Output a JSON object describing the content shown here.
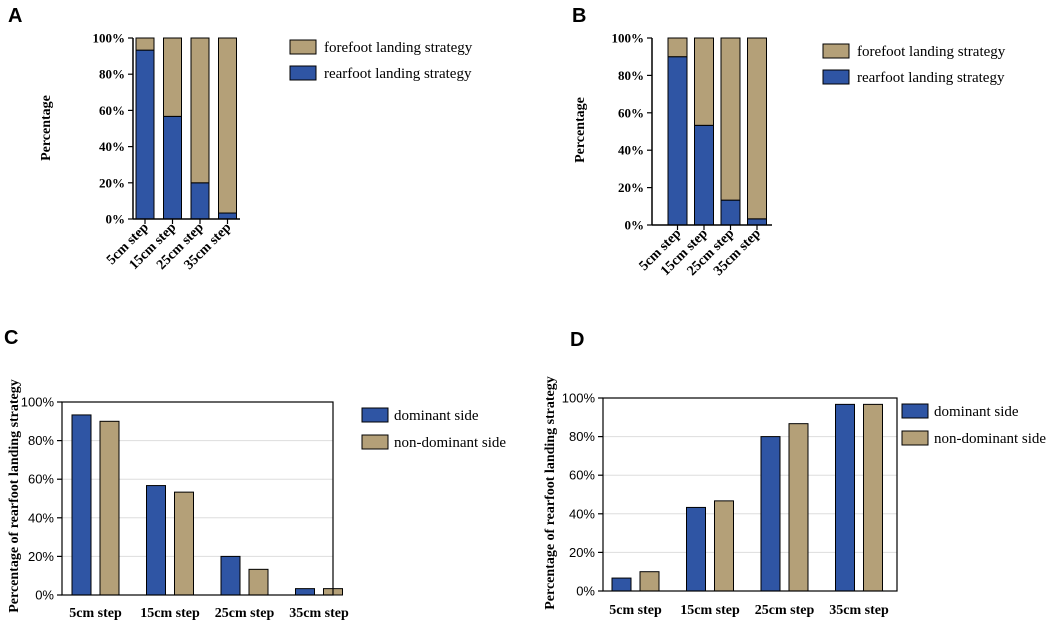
{
  "colors": {
    "rearfoot": "#2f55a4",
    "forefoot": "#b4a078",
    "dominant": "#2f55a4",
    "nondominant": "#b4a078",
    "axis": "#000000",
    "grid": "#dddddd"
  },
  "chart_data": [
    {
      "panel": "A",
      "type": "bar",
      "stacked": true,
      "categories": [
        "5cm step",
        "15cm step",
        "25cm step",
        "35cm step"
      ],
      "ylabel": "Percentage",
      "ylim": [
        0,
        100
      ],
      "yticks": [
        "0%",
        "20%",
        "40%",
        "60%",
        "80%",
        "100%"
      ],
      "series": [
        {
          "name": "rearfoot landing strategy",
          "values": [
            93.3,
            56.7,
            20,
            3.3
          ]
        },
        {
          "name": "forefoot landing strategy",
          "values": [
            6.7,
            43.3,
            80,
            96.7
          ]
        }
      ],
      "legend": [
        "forefoot landing strategy",
        "rearfoot landing strategy"
      ]
    },
    {
      "panel": "B",
      "type": "bar",
      "stacked": true,
      "categories": [
        "5cm step",
        "15cm step",
        "25cm step",
        "35cm step"
      ],
      "ylabel": "Percentage",
      "ylim": [
        0,
        100
      ],
      "yticks": [
        "0%",
        "20%",
        "40%",
        "60%",
        "80%",
        "100%"
      ],
      "series": [
        {
          "name": "rearfoot landing strategy",
          "values": [
            90,
            53.3,
            13.3,
            3.3
          ]
        },
        {
          "name": "forefoot landing strategy",
          "values": [
            10,
            46.7,
            86.7,
            96.7
          ]
        }
      ],
      "legend": [
        "forefoot landing strategy",
        "rearfoot landing strategy"
      ]
    },
    {
      "panel": "C",
      "type": "bar",
      "stacked": false,
      "categories": [
        "5cm step",
        "15cm step",
        "25cm step",
        "35cm step"
      ],
      "ylabel": "Percentage of rearfoot landing strategy",
      "ylim": [
        0,
        100
      ],
      "yticks": [
        "0%",
        "20%",
        "40%",
        "60%",
        "80%",
        "100%"
      ],
      "series": [
        {
          "name": "dominant side",
          "values": [
            93.3,
            56.7,
            20,
            3.3
          ]
        },
        {
          "name": "non-dominant side",
          "values": [
            90,
            53.3,
            13.3,
            3.3
          ]
        }
      ],
      "legend": [
        "dominant side",
        "non-dominant side"
      ]
    },
    {
      "panel": "D",
      "type": "bar",
      "stacked": false,
      "categories": [
        "5cm step",
        "15cm step",
        "25cm step",
        "35cm step"
      ],
      "ylabel": "Percentage of rearfoot landing strategy",
      "ylim": [
        0,
        100
      ],
      "yticks": [
        "0%",
        "20%",
        "40%",
        "60%",
        "80%",
        "100%"
      ],
      "series": [
        {
          "name": "dominant side",
          "values": [
            6.7,
            43.3,
            80,
            96.7
          ]
        },
        {
          "name": "non-dominant side",
          "values": [
            10,
            46.7,
            86.7,
            96.7
          ]
        }
      ],
      "legend": [
        "dominant side",
        "non-dominant side"
      ]
    }
  ]
}
